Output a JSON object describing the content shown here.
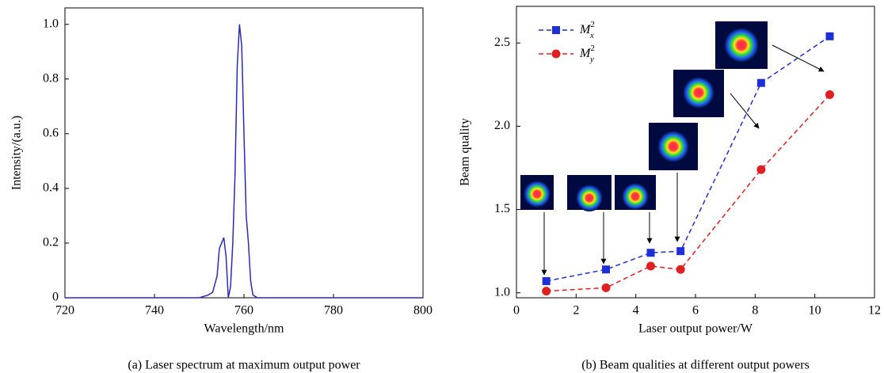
{
  "chart_data": [
    {
      "type": "line",
      "caption": "(a) Laser spectrum at maximum output power",
      "xlabel": "Wavelength/nm",
      "ylabel": "Intensity/(a.u.)",
      "color": "#2b2bb8",
      "x": [
        720,
        740,
        750,
        752,
        753,
        754,
        754.5,
        755,
        755.5,
        756,
        756.5,
        757,
        757.5,
        758,
        758.5,
        759,
        759.5,
        760,
        760.5,
        761,
        761.5,
        762,
        763,
        780,
        800
      ],
      "values": [
        0,
        0,
        0,
        0.01,
        0.02,
        0.08,
        0.18,
        0.2,
        0.22,
        0.15,
        0.0,
        0.04,
        0.2,
        0.45,
        0.85,
        1.0,
        0.92,
        0.6,
        0.3,
        0.2,
        0.06,
        0.01,
        0,
        0,
        0
      ],
      "xlim": [
        720,
        800
      ],
      "xticks": [
        720,
        740,
        760,
        780,
        800
      ],
      "ylim": [
        0,
        1.06
      ],
      "yticks": [
        0,
        0.2,
        0.4,
        0.6,
        0.8,
        {
          "value": 1,
          "label": "1.0"
        }
      ]
    },
    {
      "type": "scatter-line",
      "caption": "(b) Beam qualities at different output powers",
      "xlabel": "Laser output power/W",
      "ylabel": "Beam quality",
      "x": [
        1,
        3,
        4.5,
        5.5,
        8.2,
        10.5
      ],
      "series": [
        {
          "name": "M_x^2",
          "color": "#1f2fd6",
          "marker": "square",
          "values": [
            1.07,
            1.14,
            1.24,
            1.25,
            2.26,
            2.54
          ]
        },
        {
          "name": "M_y^2",
          "color": "#e02020",
          "marker": "circle",
          "values": [
            1.01,
            1.03,
            1.16,
            1.14,
            1.74,
            2.19
          ]
        }
      ],
      "xlim": [
        0,
        12
      ],
      "xticks": [
        0,
        2,
        4,
        6,
        8,
        10,
        12
      ],
      "ylim": [
        0.97,
        2.72
      ],
      "yticks": [
        {
          "value": 1,
          "label": "1.0"
        },
        {
          "value": 1.5,
          "label": "1.5"
        },
        {
          "value": 2,
          "label": "2.0"
        },
        {
          "value": 2.5,
          "label": "2.5"
        }
      ],
      "legend": "upper left"
    }
  ]
}
